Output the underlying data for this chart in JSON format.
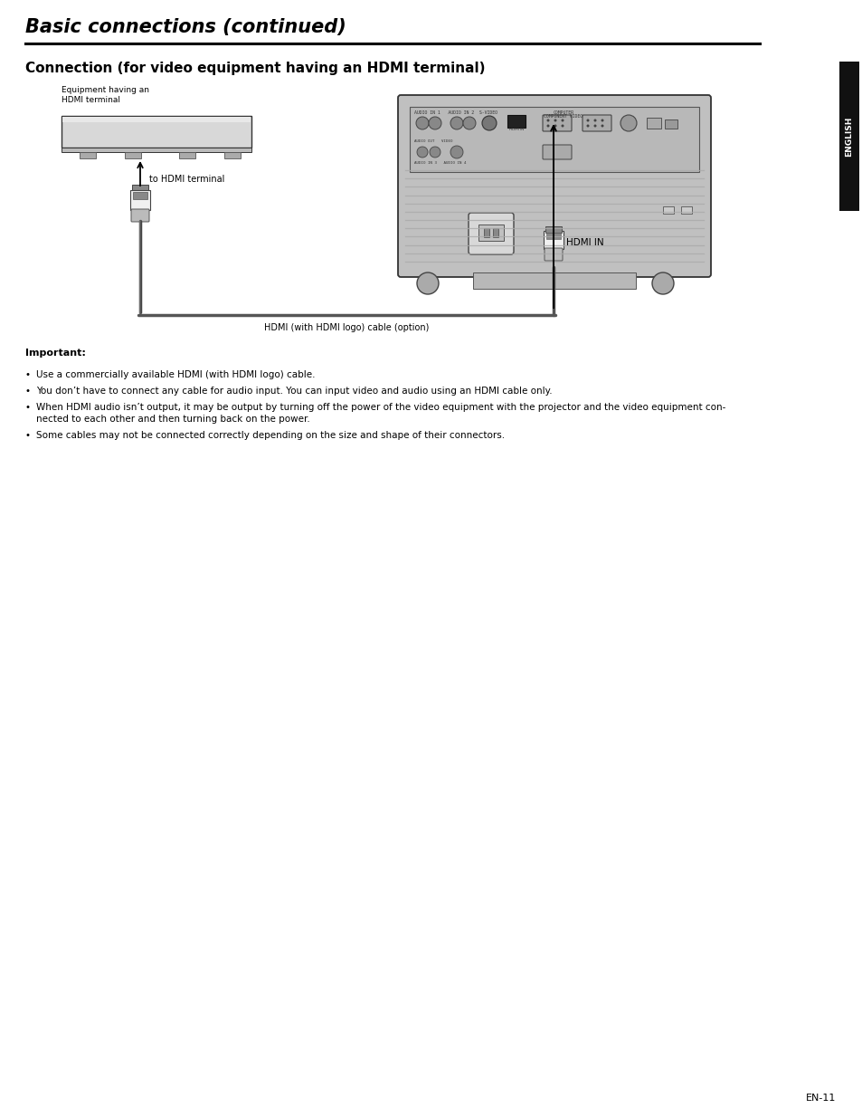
{
  "title": "Basic connections (continued)",
  "section_title": "Connection (for video equipment having an HDMI terminal)",
  "sidebar_text": "ENGLISH",
  "page_number": "EN-11",
  "equipment_label": "Equipment having an\nHDMI terminal",
  "to_hdmi_label": "to HDMI terminal",
  "hdmi_in_label": "HDMI IN",
  "cable_label": "HDMI (with HDMI logo) cable (option)",
  "important_title": "Important:",
  "bullet_points": [
    "Use a commercially available HDMI (with HDMI logo) cable.",
    "You don’t have to connect any cable for audio input. You can input video and audio using an HDMI cable only.",
    "When HDMI audio isn’t output, it may be output by turning off the power of the video equipment with the projector and the video equipment con-\nnected to each other and then turning back on the power.",
    "Some cables may not be connected correctly depending on the size and shape of their connectors."
  ],
  "bg_color": "#ffffff",
  "text_color": "#000000",
  "title_color": "#000000",
  "line_color": "#000000",
  "sidebar_bg": "#1a1a1a"
}
